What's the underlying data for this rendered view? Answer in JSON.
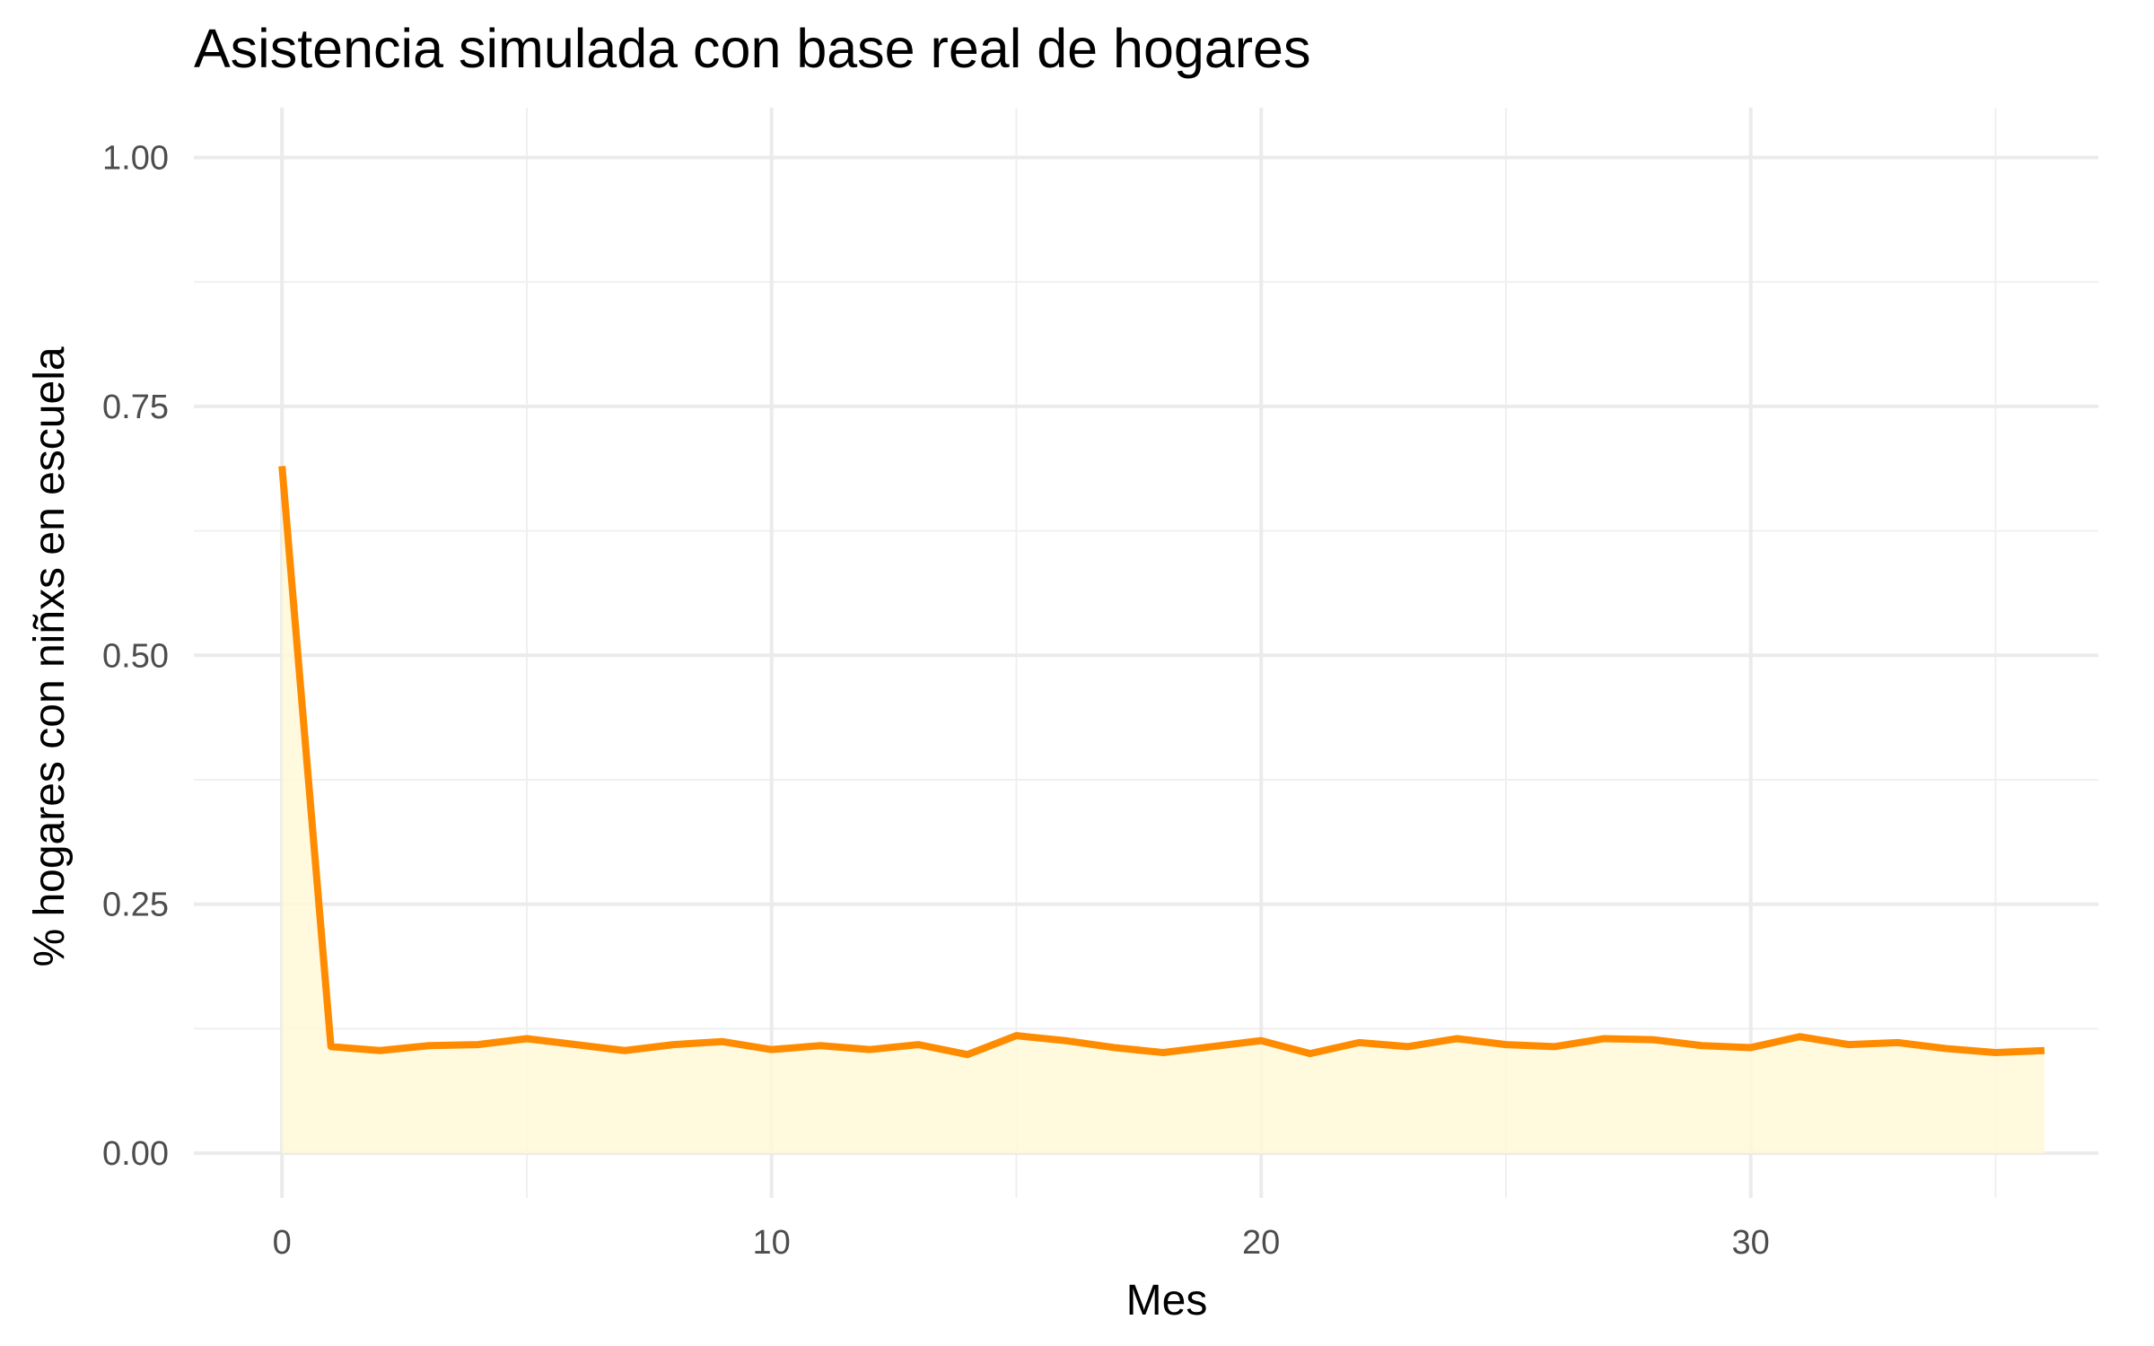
{
  "chart_data": {
    "type": "area",
    "title": "Asistencia simulada con base real de hogares",
    "xlabel": "Mes",
    "ylabel": "% hogares con niñxs en escuela",
    "xlim": [
      -1.8,
      37.1
    ],
    "ylim": [
      -0.045,
      1.05
    ],
    "x_ticks": [
      0,
      10,
      20,
      30
    ],
    "x_tick_labels": [
      "0",
      "10",
      "20",
      "30"
    ],
    "x_minor_ticks": [
      5,
      15,
      25,
      35
    ],
    "y_ticks": [
      0,
      0.25,
      0.5,
      0.75,
      1
    ],
    "y_tick_labels": [
      "0.00",
      "0.25",
      "0.50",
      "0.75",
      "1.00"
    ],
    "y_minor_ticks": [
      0.125,
      0.375,
      0.625,
      0.875
    ],
    "grid": true,
    "legend": "none",
    "series": [
      {
        "line_color": "#ff8c00",
        "fill_color": "#fff8d8",
        "x": [
          0,
          1,
          2,
          3,
          4,
          5,
          6,
          7,
          8,
          9,
          10,
          11,
          12,
          13,
          14,
          15,
          16,
          17,
          18,
          19,
          20,
          21,
          22,
          23,
          24,
          25,
          26,
          27,
          28,
          29,
          30,
          31,
          32,
          33,
          34,
          35,
          36
        ],
        "values": [
          0.69,
          0.107,
          0.103,
          0.108,
          0.109,
          0.115,
          0.109,
          0.103,
          0.109,
          0.112,
          0.104,
          0.108,
          0.104,
          0.109,
          0.099,
          0.118,
          0.113,
          0.106,
          0.101,
          0.107,
          0.113,
          0.1,
          0.111,
          0.107,
          0.115,
          0.109,
          0.107,
          0.115,
          0.114,
          0.108,
          0.106,
          0.117,
          0.109,
          0.111,
          0.105,
          0.101,
          0.103
        ]
      }
    ]
  }
}
